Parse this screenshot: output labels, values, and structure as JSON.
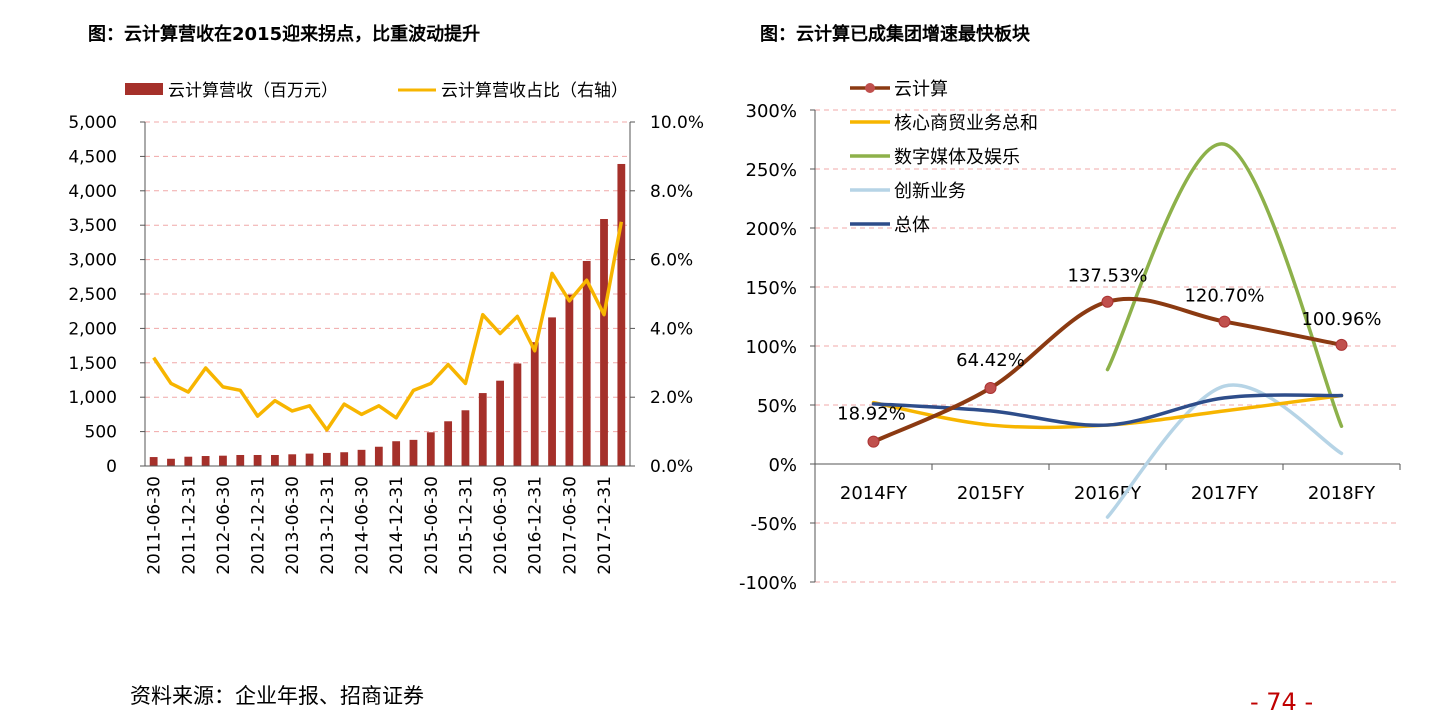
{
  "page": {
    "source": "资料来源：企业年报、招商证券",
    "page_number": "- 74 -",
    "page_number_color": "#c00000"
  },
  "chart_data": [
    {
      "type": "bar+line",
      "title": "图：云计算营收在2015迎来拐点，比重波动提升",
      "legend": [
        "云计算营收（百万元）",
        "云计算营收占比（右轴）"
      ],
      "legend_position": "top",
      "colors": {
        "bar": "#a5302a",
        "line": "#f7b500",
        "grid": "#f0a8a8"
      },
      "grid": true,
      "ylim": [
        0,
        5000
      ],
      "ylim_right": [
        0,
        10
      ],
      "y_ticks": [
        "0",
        "500",
        "1,000",
        "1,500",
        "2,000",
        "2,500",
        "3,000",
        "3,500",
        "4,000",
        "4,500",
        "5,000"
      ],
      "y_right_ticks": [
        "0.0%",
        "2.0%",
        "4.0%",
        "6.0%",
        "8.0%",
        "10.0%"
      ],
      "x_tick_labels": [
        "2011-06-30",
        "2011-12-31",
        "2012-06-30",
        "2012-12-31",
        "2013-06-30",
        "2013-12-31",
        "2014-06-30",
        "2014-12-31",
        "2015-06-30",
        "2015-12-31",
        "2016-06-30",
        "2016-12-31",
        "2017-06-30",
        "2017-12-31"
      ],
      "bar_values": [
        130,
        105,
        135,
        145,
        150,
        160,
        160,
        160,
        170,
        180,
        190,
        200,
        235,
        280,
        360,
        380,
        490,
        650,
        810,
        1060,
        1240,
        1490,
        1800,
        2160,
        2490,
        2980,
        3590,
        4390
      ],
      "line_values": [
        3.15,
        2.4,
        2.15,
        2.85,
        2.3,
        2.2,
        1.45,
        1.9,
        1.6,
        1.75,
        1.05,
        1.8,
        1.5,
        1.75,
        1.4,
        2.2,
        2.4,
        2.95,
        2.4,
        4.4,
        3.85,
        4.35,
        3.35,
        5.6,
        4.8,
        5.4,
        4.4,
        7.1
      ]
    },
    {
      "type": "line",
      "title": "图：云计算已成集团增速最快板块",
      "categories": [
        "2014FY",
        "2015FY",
        "2016FY",
        "2017FY",
        "2018FY"
      ],
      "ylim": [
        -100,
        300
      ],
      "y_ticks": [
        "300%",
        "250%",
        "200%",
        "150%",
        "100%",
        "50%",
        "0%",
        "-50%",
        "-100%"
      ],
      "grid": true,
      "legend_position": "top-left",
      "series": [
        {
          "name": "云计算",
          "color": "#8b3a12",
          "values": [
            18.92,
            64.42,
            137.53,
            120.7,
            100.96
          ],
          "labels": [
            "18.92%",
            "64.42%",
            "137.53%",
            "120.70%",
            "100.96%"
          ],
          "markers": true
        },
        {
          "name": "核心商贸业务总和",
          "color": "#f7b500",
          "values": [
            52,
            33,
            33,
            45,
            58
          ]
        },
        {
          "name": "数字媒体及娱乐",
          "color": "#8db14a",
          "values": [
            null,
            null,
            80,
            271,
            32
          ]
        },
        {
          "name": "创新业务",
          "color": "#b6d4e6",
          "values": [
            null,
            null,
            -45,
            66,
            9
          ]
        },
        {
          "name": "总体",
          "color": "#2e4d8a",
          "values": [
            51,
            45,
            33,
            56,
            58
          ]
        }
      ]
    }
  ]
}
